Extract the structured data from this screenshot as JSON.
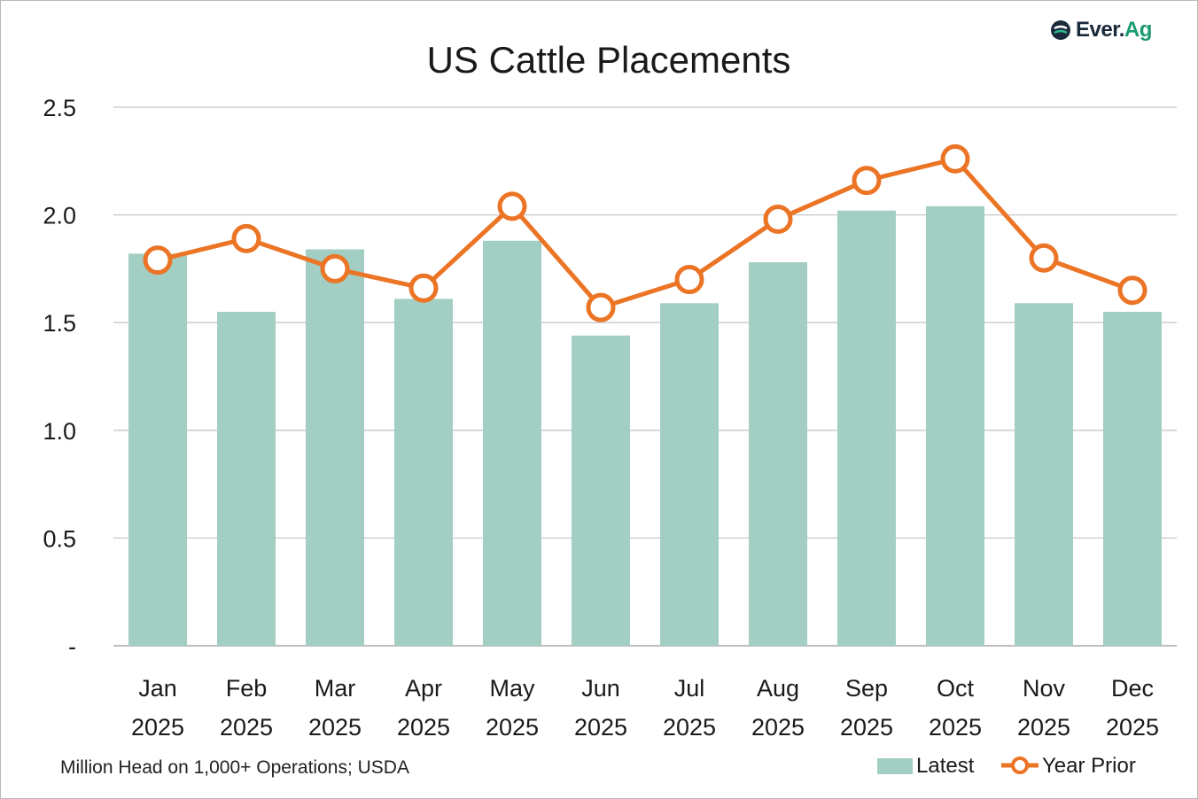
{
  "logo": {
    "text_main": "Ever.",
    "text_accent": "Ag"
  },
  "source_note": "Million Head on 1,000+  Operations; USDA",
  "colors": {
    "bar": "#a2cec3",
    "line": "#eb7425",
    "grid": "#c8c8c8",
    "text": "#1a1a1a"
  },
  "chart_data": {
    "type": "bar",
    "title": "US Cattle Placements",
    "xlabel": "",
    "ylabel": "",
    "ylim": [
      0,
      2.5
    ],
    "y_ticks": [
      "-",
      "0.5",
      "1.0",
      "1.5",
      "2.0",
      "2.5"
    ],
    "y_tick_values": [
      0,
      0.5,
      1.0,
      1.5,
      2.0,
      2.5
    ],
    "categories": [
      [
        "Jan",
        "2025"
      ],
      [
        "Feb",
        "2025"
      ],
      [
        "Mar",
        "2025"
      ],
      [
        "Apr",
        "2025"
      ],
      [
        "May",
        "2025"
      ],
      [
        "Jun",
        "2025"
      ],
      [
        "Jul",
        "2025"
      ],
      [
        "Aug",
        "2025"
      ],
      [
        "Sep",
        "2025"
      ],
      [
        "Oct",
        "2025"
      ],
      [
        "Nov",
        "2025"
      ],
      [
        "Dec",
        "2025"
      ]
    ],
    "series": [
      {
        "name": "Latest",
        "kind": "bar",
        "values": [
          1.82,
          1.55,
          1.84,
          1.61,
          1.88,
          1.44,
          1.59,
          1.78,
          2.02,
          2.04,
          1.59,
          1.55
        ]
      },
      {
        "name": "Year Prior",
        "kind": "line",
        "values": [
          1.79,
          1.89,
          1.75,
          1.66,
          2.04,
          1.57,
          1.7,
          1.98,
          2.16,
          2.26,
          1.8,
          1.65
        ]
      }
    ],
    "grid": true,
    "legend": "bottom-right"
  }
}
